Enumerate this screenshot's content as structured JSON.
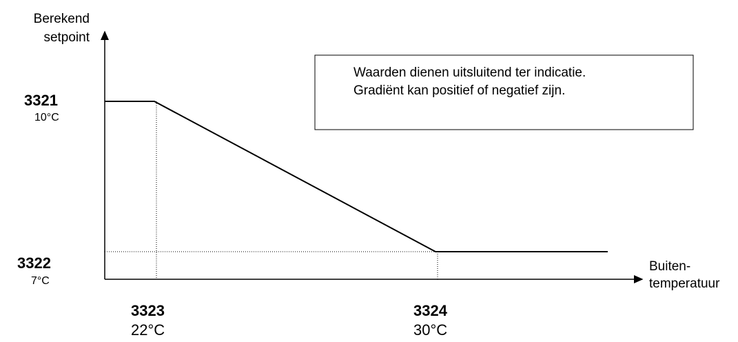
{
  "y_axis": {
    "label": [
      "Berekend",
      "setpoint"
    ]
  },
  "x_axis": {
    "label": [
      "Buiten-",
      "temperatuur"
    ]
  },
  "note": [
    "Waarden dienen uitsluitend ter indicatie.",
    "Gradiënt kan positief of negatief zijn."
  ],
  "y_points": [
    {
      "code": "3321",
      "value": "10°C"
    },
    {
      "code": "3322",
      "value": "7°C"
    }
  ],
  "x_points": [
    {
      "code": "3323",
      "value": "22°C"
    },
    {
      "code": "3324",
      "value": "30°C"
    }
  ]
}
